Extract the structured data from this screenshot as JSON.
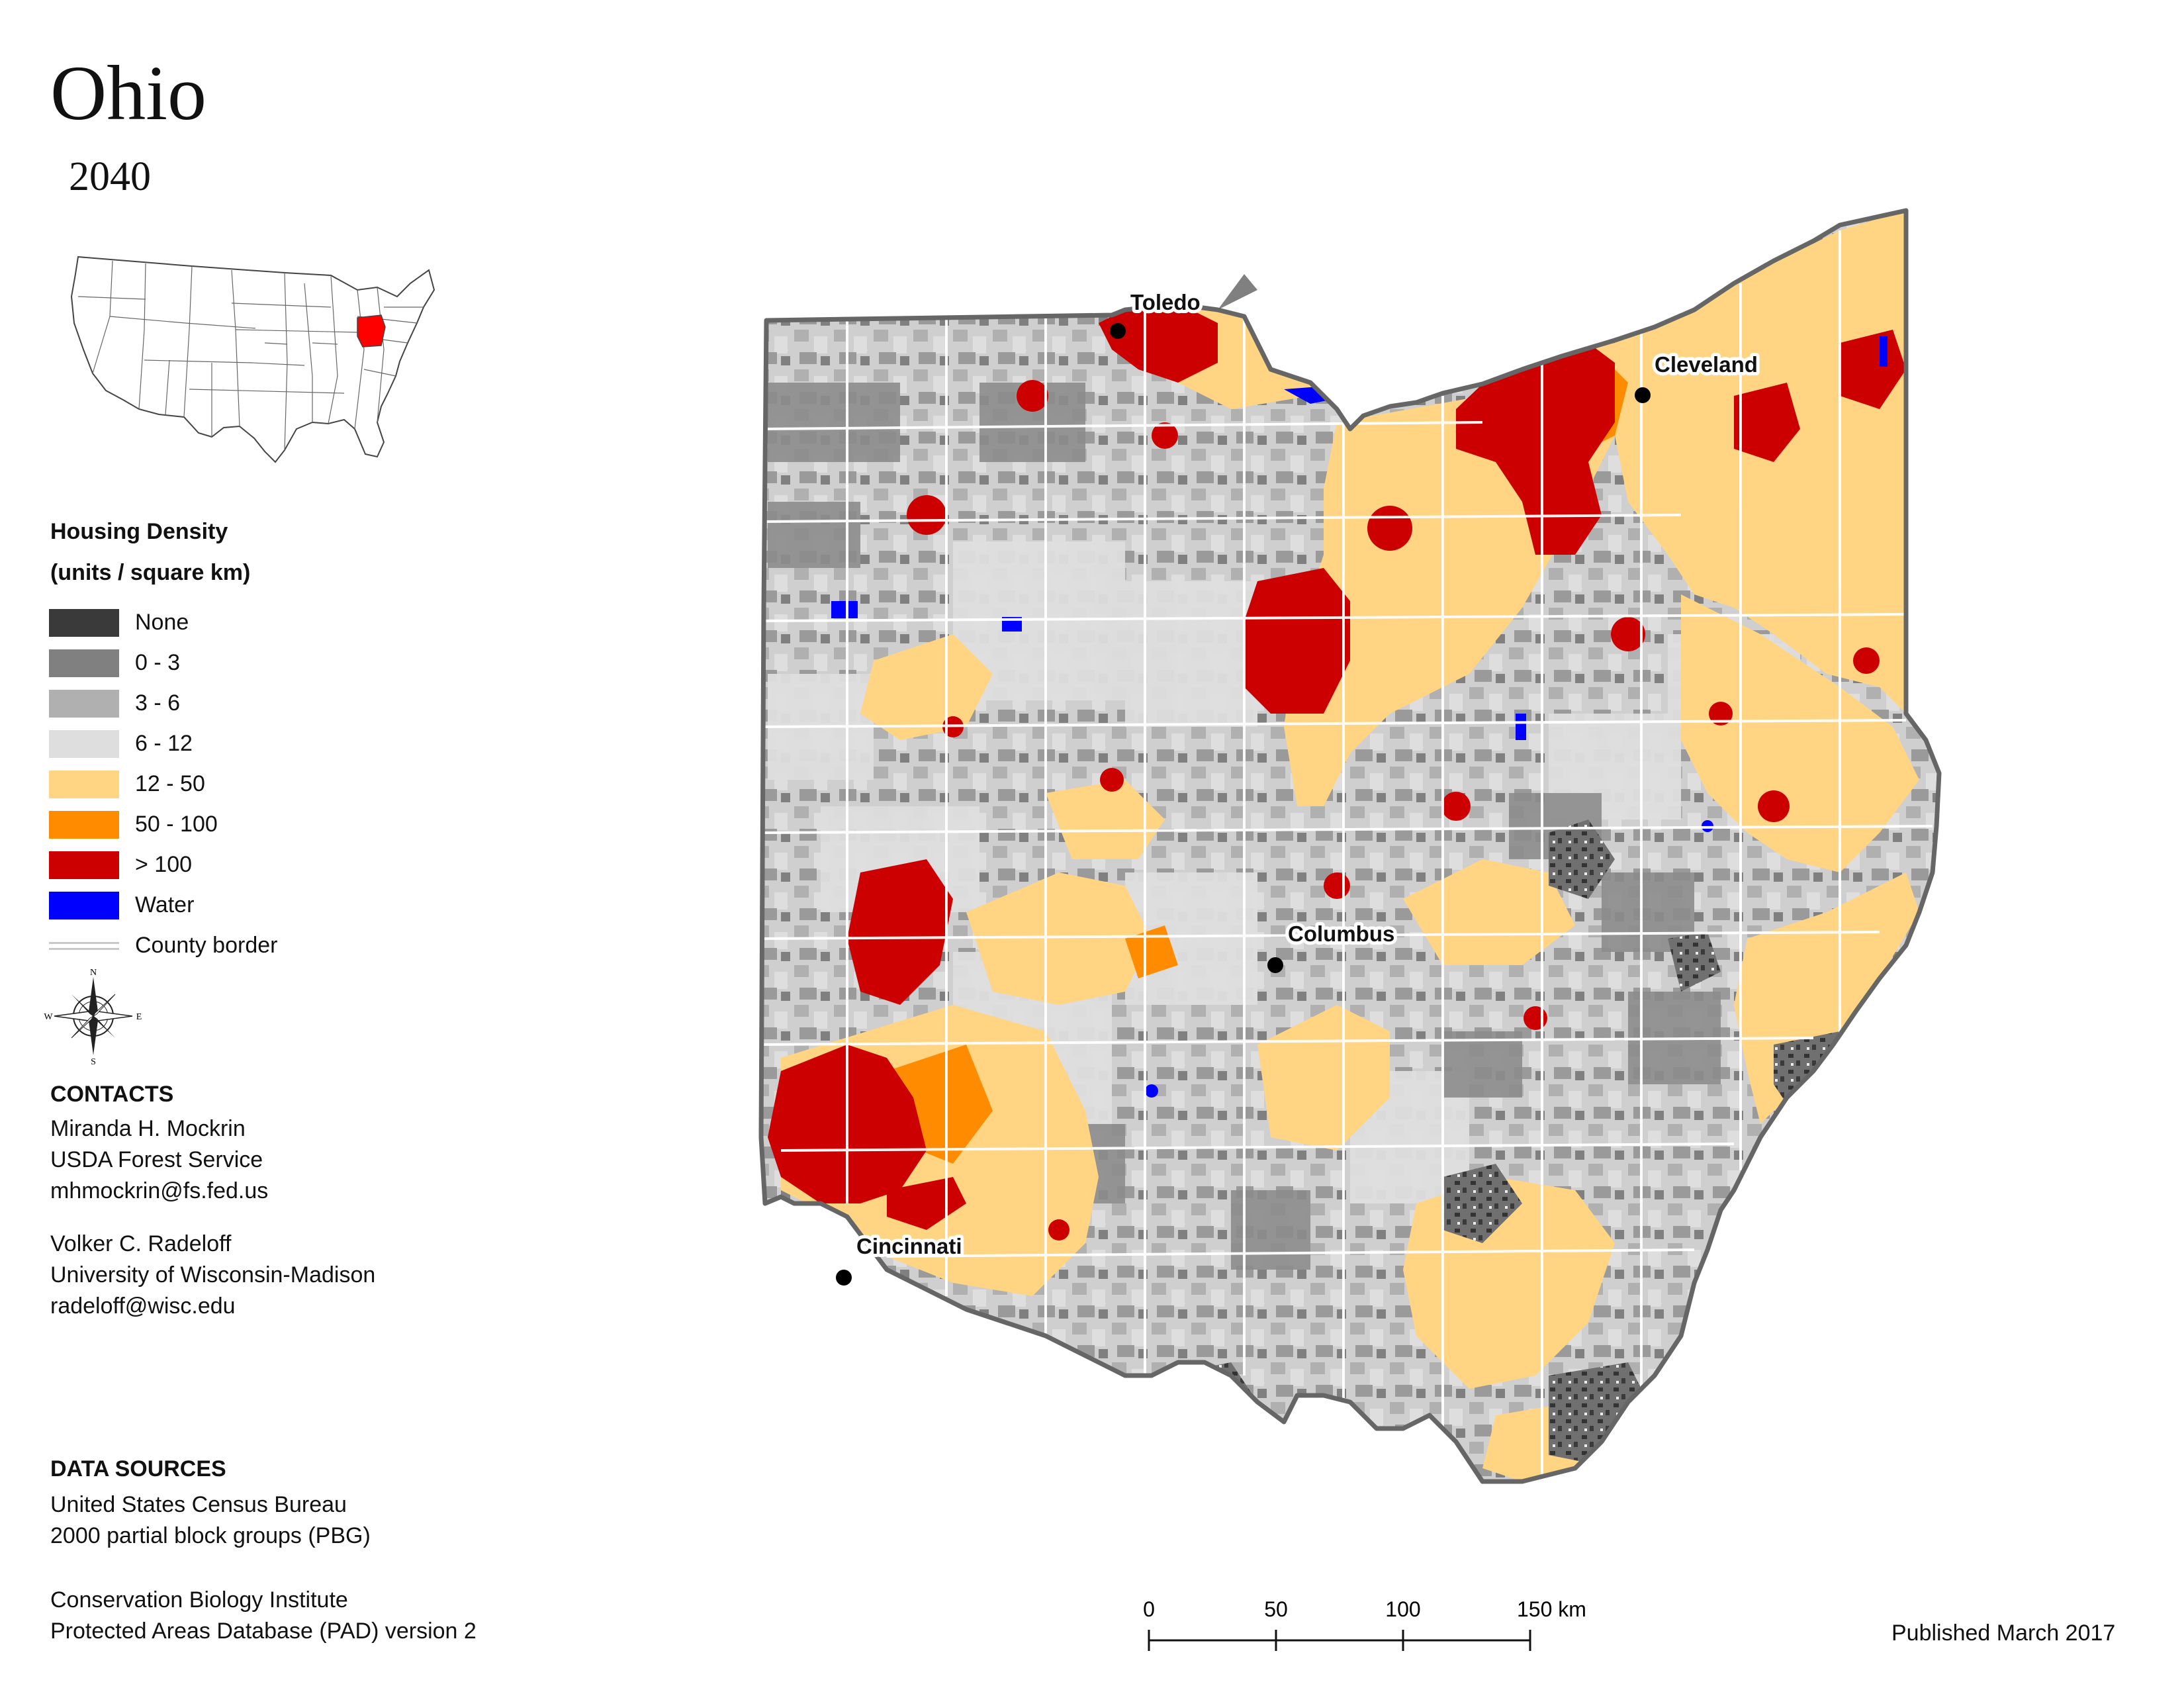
{
  "title": "Ohio",
  "subtitle": "2040",
  "legend": {
    "title_line1": "Housing Density",
    "title_line2": "(units / square km)",
    "items": [
      {
        "label": "None",
        "color": "#3a3a3a"
      },
      {
        "label": "0 - 3",
        "color": "#808080"
      },
      {
        "label": "3 - 6",
        "color": "#b0b0b0"
      },
      {
        "label": "6 - 12",
        "color": "#dedede"
      },
      {
        "label": "12 - 50",
        "color": "#ffd483"
      },
      {
        "label": "50 - 100",
        "color": "#ff8c00"
      },
      {
        "label": "> 100",
        "color": "#cc0000"
      },
      {
        "label": "Water",
        "color": "#0000ff"
      }
    ],
    "county_border_label": "County border"
  },
  "compass": {
    "n": "N",
    "s": "S",
    "e": "E",
    "w": "W"
  },
  "contacts": {
    "heading": "CONTACTS",
    "person1": [
      "Miranda H. Mockrin",
      "USDA Forest Service",
      "mhmockrin@fs.fed.us"
    ],
    "person2": [
      "Volker C. Radeloff",
      "University of Wisconsin-Madison",
      "radeloff@wisc.edu"
    ]
  },
  "data_sources": {
    "heading": "DATA SOURCES",
    "source1": [
      "United States Census Bureau",
      "2000 partial block groups (PBG)"
    ],
    "source2": [
      "Conservation Biology Institute",
      "Protected Areas Database (PAD) version 2"
    ]
  },
  "scale_bar": {
    "ticks": [
      "0",
      "50",
      "100",
      "150 km"
    ]
  },
  "published": "Published March 2017",
  "cities": [
    {
      "name": "Toledo"
    },
    {
      "name": "Cleveland"
    },
    {
      "name": "Columbus"
    },
    {
      "name": "Cincinnati"
    }
  ],
  "colors": {
    "state_outline": "#666666",
    "highlight_state": "#ff0000"
  }
}
